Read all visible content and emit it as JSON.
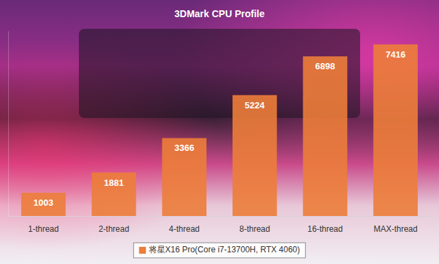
{
  "chart_data": {
    "type": "bar",
    "title": "3DMark CPU Profile",
    "categories": [
      "1-thread",
      "2-thread",
      "4-thread",
      "8-thread",
      "16-thread",
      "MAX-thread"
    ],
    "series": [
      {
        "name": "将星X16 Pro(Core i7-13700H, RTX 4060)",
        "color": "#ec7d3a",
        "values": [
          1003,
          1881,
          3366,
          5224,
          6898,
          7416
        ]
      }
    ],
    "ylim": [
      0,
      8000
    ],
    "grid": false,
    "legend": "bottom",
    "data_labels": true,
    "tick_labels": "x"
  }
}
